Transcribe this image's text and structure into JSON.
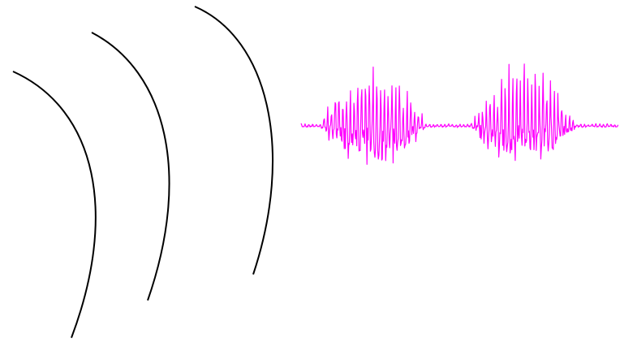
{
  "illustration": {
    "arcs": {
      "count": 3,
      "stroke_color": "#000000"
    },
    "waveform": {
      "stroke_color": "#ff00ff",
      "bursts": 2
    }
  }
}
